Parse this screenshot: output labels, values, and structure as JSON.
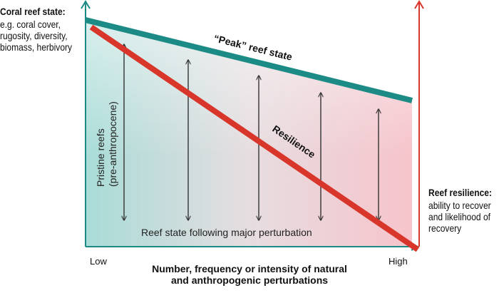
{
  "diagram": {
    "left_axis": {
      "title": "Coral reef state:",
      "description_lines": [
        "e.g. coral cover,",
        "rugosity, diversity,",
        "biomass, herbivory"
      ]
    },
    "right_axis": {
      "title": "Reef resilience:",
      "description_lines": [
        "ability to recover",
        "and likelihood of",
        "recovery"
      ]
    },
    "x_axis": {
      "low_label": "Low",
      "high_label": "High",
      "title_lines": [
        "Number, frequency or intensity of natural",
        "and anthropogenic perturbations"
      ]
    },
    "peak_line_label": "“Peak” reef state",
    "resilience_line_label": "Resilience",
    "pristine_label_lines": [
      "Pristine reefs",
      "(pre-anthropocene)"
    ],
    "perturbation_label": "Reef state following major perturbation",
    "colors": {
      "teal": "#1c8b86",
      "red": "#d9362b",
      "gradient_start": "#a8dcd7",
      "gradient_end": "#f6c4cb"
    }
  }
}
